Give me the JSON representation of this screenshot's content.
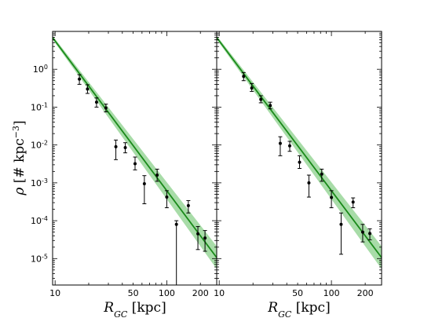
{
  "chart_data": [
    {
      "type": "line",
      "title": "",
      "xlabel": "R_GC [kpc]",
      "ylabel": "ρ [# kpc^-3]",
      "xscale": "log",
      "yscale": "log",
      "xlim": [
        9.5,
        280
      ],
      "ylim": [
        2e-06,
        10
      ],
      "xticks": [
        "10",
        "50",
        "100",
        "200"
      ],
      "yticks": [
        "10^0",
        "10^-1",
        "10^-2",
        "10^-3",
        "10^-4",
        "10^-5"
      ],
      "band_color": "#9fd89f",
      "line_color": "#1a8a1a",
      "series": [
        {
          "type": "scatter_errorbar",
          "x": [
            16.5,
            19.5,
            23.5,
            28.5,
            35,
            42.5,
            52,
            63,
            82,
            100,
            122,
            156,
            190,
            220
          ],
          "y": [
            0.55,
            0.3,
            0.135,
            0.095,
            0.009,
            0.0085,
            0.0032,
            0.00095,
            0.0016,
            0.00042,
            8e-05,
            0.00025,
            4.5e-05,
            3.5e-05
          ],
          "yerr_low": [
            0.4,
            0.23,
            0.1,
            0.075,
            0.0041,
            0.0062,
            0.0022,
            0.00028,
            0.0011,
            0.00022,
            1e-08,
            0.00016,
            1.73e-05,
            1.56e-05
          ],
          "yerr_high": [
            0.72,
            0.39,
            0.175,
            0.12,
            0.0135,
            0.0115,
            0.0048,
            0.00155,
            0.0023,
            0.00062,
            0.0001,
            0.00034,
            7e-05,
            5.5e-05
          ]
        },
        {
          "type": "power_law_fit",
          "x_range": [
            9.5,
            280
          ],
          "fit_points": [
            [
              10,
              5.6
            ],
            [
              200,
              4e-05
            ]
          ],
          "band_factor": 1.6
        }
      ]
    },
    {
      "type": "line",
      "title": "",
      "xlabel": "R_GC [kpc]",
      "ylabel": "",
      "xscale": "log",
      "yscale": "log",
      "xlim": [
        9.5,
        280
      ],
      "ylim": [
        2e-06,
        10
      ],
      "xticks": [
        "10",
        "50",
        "100",
        "200"
      ],
      "band_color": "#9fd89f",
      "line_color": "#1a8a1a",
      "series": [
        {
          "type": "scatter_errorbar",
          "x": [
            16.5,
            19.5,
            23.5,
            28.5,
            35,
            42.5,
            52,
            63,
            82,
            100,
            122,
            156,
            190,
            220
          ],
          "y": [
            0.65,
            0.32,
            0.16,
            0.11,
            0.011,
            0.0095,
            0.0035,
            0.001,
            0.0017,
            0.00041,
            8e-05,
            0.00031,
            5e-05,
            4.6e-05
          ],
          "yerr_low": [
            0.5,
            0.26,
            0.13,
            0.09,
            0.0052,
            0.0068,
            0.0024,
            0.00042,
            0.0011,
            0.00022,
            1.3e-05,
            0.00022,
            2.75e-05,
            3.13e-05
          ],
          "yerr_high": [
            0.82,
            0.42,
            0.2,
            0.135,
            0.0165,
            0.0125,
            0.0052,
            0.0016,
            0.0023,
            0.00062,
            0.00016,
            0.0004,
            8e-05,
            6.1e-05
          ]
        },
        {
          "type": "power_law_fit",
          "x_range": [
            9.5,
            280
          ],
          "fit_points": [
            [
              10,
              5.6
            ],
            [
              200,
              4e-05
            ]
          ],
          "band_factor": 1.6
        }
      ]
    }
  ]
}
